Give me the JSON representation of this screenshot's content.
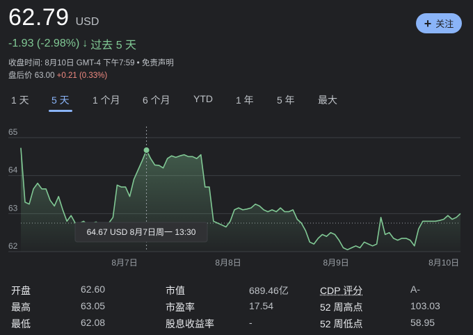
{
  "header": {
    "price": "62.79",
    "currency": "USD",
    "change": "-1.93 (-2.98%)",
    "change_arrow": "↓",
    "period": "过去 5 天",
    "close_time": "收盘时间: 8月10日 GMT-4 下午7:59 • ",
    "disclaimer": "免责声明",
    "after_hours_label": "盘后价 63.00 ",
    "after_hours_change": "+0.21 (0.33%)"
  },
  "follow_button": {
    "icon": "plus-icon",
    "label": "关注"
  },
  "tabs": [
    "1 天",
    "5 天",
    "1 个月",
    "6 个月",
    "YTD",
    "1 年",
    "5 年",
    "最大"
  ],
  "active_tab": "5 天",
  "colors": {
    "line": "#81c995",
    "accent": "#8ab4f8",
    "negative_after": "#f28b82",
    "background": "#202124"
  },
  "chart_data": {
    "type": "area",
    "ylim": [
      62,
      65
    ],
    "y_ticks": [
      "65",
      "64",
      "63",
      "62"
    ],
    "x_ticks": [
      "8月7日",
      "8月8日",
      "8月9日",
      "8月10日"
    ],
    "baseline": 62.75,
    "hover": {
      "label": "64.67 USD  8月7日周一 13:30",
      "value": 64.67
    },
    "series": [
      {
        "values": [
          64.72,
          63.3,
          63.25,
          63.65,
          63.8,
          63.65,
          63.65,
          63.35,
          63.2,
          63.45,
          63.1,
          62.8,
          62.95,
          62.75,
          62.75,
          62.8,
          62.7,
          62.75,
          62.78,
          62.7,
          62.75,
          62.75,
          62.9,
          63.75,
          63.7,
          63.7,
          63.45,
          63.9,
          64.15,
          64.4,
          64.67,
          64.45,
          64.28,
          64.27,
          64.2,
          64.45,
          64.52,
          64.48,
          64.52,
          64.55,
          64.5,
          64.5,
          64.45,
          64.55,
          63.7,
          63.7,
          62.8,
          62.75,
          62.7,
          62.65,
          62.8,
          63.1,
          63.15,
          63.1,
          63.12,
          63.15,
          63.25,
          63.2,
          63.1,
          63.05,
          63.1,
          63.05,
          63.15,
          63.05,
          63.05,
          63.1,
          62.85,
          62.75,
          62.55,
          62.25,
          62.2,
          62.35,
          62.45,
          62.4,
          62.5,
          62.45,
          62.3,
          62.1,
          62.05,
          62.1,
          62.15,
          62.1,
          62.25,
          62.2,
          62.15,
          62.2,
          62.9,
          62.45,
          62.5,
          62.35,
          62.3,
          62.35,
          62.35,
          62.3,
          62.15,
          62.6,
          62.8,
          62.8,
          62.8,
          62.8,
          62.82,
          62.85,
          62.95,
          62.85,
          62.9,
          63.0
        ]
      }
    ]
  },
  "stats": [
    {
      "label": "开盘",
      "value": "62.60"
    },
    {
      "label": "最高",
      "value": "63.05"
    },
    {
      "label": "最低",
      "value": "62.08"
    },
    {
      "label": "市值",
      "value": "689.46亿"
    },
    {
      "label": "市盈率",
      "value": "17.54"
    },
    {
      "label": "股息收益率",
      "value": "-"
    },
    {
      "label": "CDP 评分",
      "value": "A-"
    },
    {
      "label": "52 周高点",
      "value": "103.03"
    },
    {
      "label": "52 周低点",
      "value": "58.95"
    }
  ]
}
